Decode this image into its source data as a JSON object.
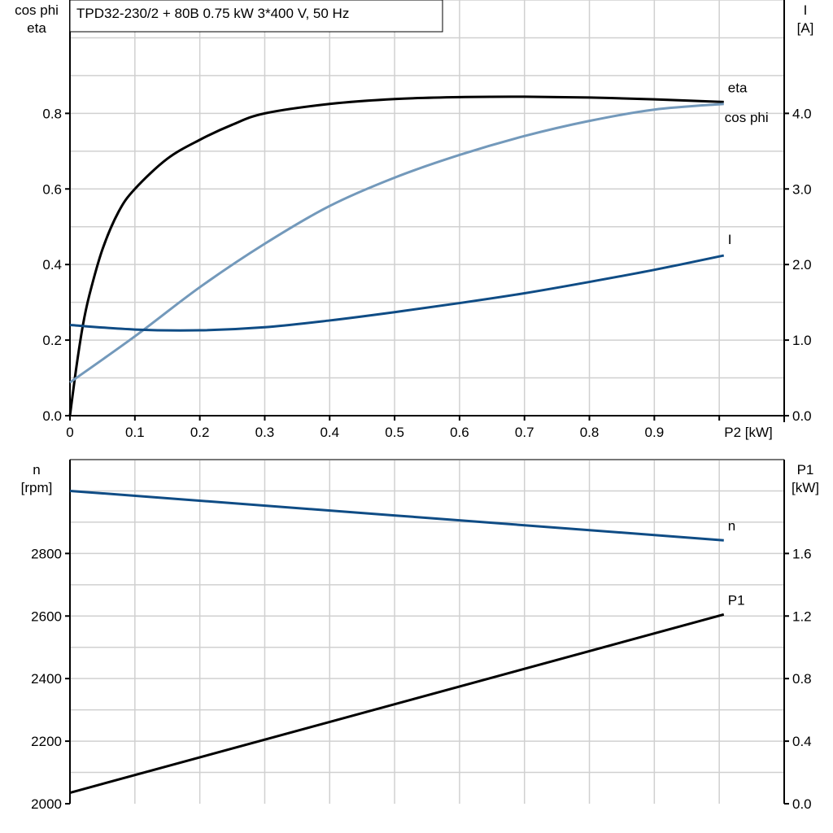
{
  "title": "TPD32-230/2 + 80B   0.75 kW   3*400 V, 50 Hz",
  "colors": {
    "eta": "#000000",
    "cos_phi": "#7399bb",
    "I": "#0f4c85",
    "n": "#0f4c85",
    "P1": "#000000",
    "grid": "#d0d0d0"
  },
  "chart_data": [
    {
      "type": "line",
      "xlabel": "P2 [kW]",
      "ylabel_left": [
        "cos phi",
        "eta"
      ],
      "ylabel_right": [
        "I",
        "[A]"
      ],
      "xlim": [
        0,
        1.1
      ],
      "ylim_left": [
        0,
        1.1
      ],
      "ylim_right": [
        0,
        5.5
      ],
      "x_ticks": [
        "0",
        "0.1",
        "0.2",
        "0.3",
        "0.4",
        "0.5",
        "0.6",
        "0.7",
        "0.8",
        "0.9"
      ],
      "y_left_ticks": [
        "0.0",
        "0.2",
        "0.4",
        "0.6",
        "0.8"
      ],
      "y_right_ticks": [
        "0.0",
        "1.0",
        "2.0",
        "3.0",
        "4.0"
      ],
      "grid": true,
      "series": [
        {
          "name": "eta",
          "axis": "left",
          "x": [
            0,
            0.01,
            0.02,
            0.03,
            0.05,
            0.075,
            0.1,
            0.15,
            0.2,
            0.25,
            0.3,
            0.4,
            0.5,
            0.6,
            0.7,
            0.8,
            0.9,
            1.007
          ],
          "y": [
            0,
            0.13,
            0.24,
            0.32,
            0.44,
            0.54,
            0.6,
            0.68,
            0.73,
            0.77,
            0.8,
            0.825,
            0.838,
            0.843,
            0.844,
            0.842,
            0.837,
            0.83
          ]
        },
        {
          "name": "cos phi",
          "axis": "left",
          "x": [
            0,
            0.1,
            0.2,
            0.3,
            0.4,
            0.5,
            0.6,
            0.7,
            0.8,
            0.9,
            1.007
          ],
          "y": [
            0.088,
            0.21,
            0.34,
            0.455,
            0.555,
            0.63,
            0.69,
            0.74,
            0.78,
            0.81,
            0.825
          ]
        },
        {
          "name": "I",
          "axis": "right",
          "x": [
            0,
            0.1,
            0.2,
            0.3,
            0.4,
            0.5,
            0.6,
            0.7,
            0.8,
            0.9,
            1.007
          ],
          "y": [
            1.2,
            1.14,
            1.13,
            1.17,
            1.26,
            1.37,
            1.49,
            1.62,
            1.77,
            1.93,
            2.12
          ]
        }
      ]
    },
    {
      "type": "line",
      "ylabel_left": [
        "n",
        "[rpm]"
      ],
      "ylabel_right": [
        "P1",
        "[kW]"
      ],
      "xlim": [
        0,
        1.1
      ],
      "ylim_left": [
        2000,
        3100
      ],
      "ylim_right": [
        0,
        2.2
      ],
      "y_left_ticks": [
        "2000",
        "2200",
        "2400",
        "2600",
        "2800"
      ],
      "y_right_ticks": [
        "0.0",
        "0.4",
        "0.8",
        "1.2",
        "1.6"
      ],
      "grid": true,
      "series": [
        {
          "name": "n",
          "axis": "left",
          "x": [
            0,
            1.007
          ],
          "y": [
            3000,
            2842
          ]
        },
        {
          "name": "P1",
          "axis": "right",
          "x": [
            0,
            1.007
          ],
          "y": [
            0.07,
            1.21
          ]
        }
      ]
    }
  ]
}
